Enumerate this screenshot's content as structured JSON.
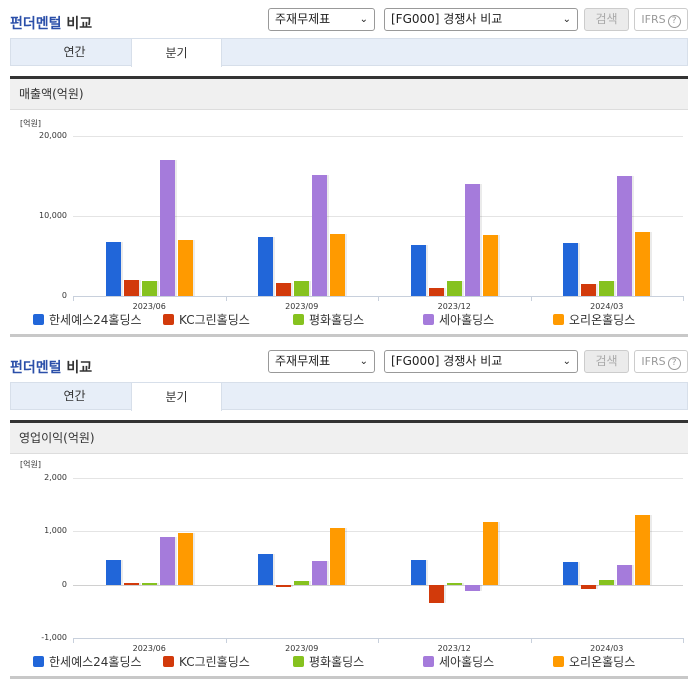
{
  "panels": [
    {
      "header": {
        "title_accent": "펀더멘털",
        "title_plain": " 비교",
        "select1": "주재무제표",
        "select2": "[FG000] 경쟁사 비교",
        "search_label": "검색",
        "ifrs_label": "IFRS",
        "help_glyph": "?"
      },
      "tabs": [
        {
          "label": "연간",
          "active": false
        },
        {
          "label": "분기",
          "active": true
        }
      ],
      "section_title": "매출액(억원)",
      "unit_label": "[억원]",
      "y_ticks": [
        "20,000",
        "10,000",
        "0"
      ]
    },
    {
      "header": {
        "title_accent": "펀더멘털",
        "title_plain": " 비교",
        "select1": "주재무제표",
        "select2": "[FG000] 경쟁사 비교",
        "search_label": "검색",
        "ifrs_label": "IFRS",
        "help_glyph": "?"
      },
      "tabs": [
        {
          "label": "연간",
          "active": false
        },
        {
          "label": "분기",
          "active": true
        }
      ],
      "section_title": "영업이익(억원)",
      "unit_label": "[억원]",
      "y_ticks": [
        "2,000",
        "1,000",
        "0",
        "-1,000"
      ]
    }
  ],
  "legend": [
    {
      "name": "한세예스24홀딩스",
      "color": "#2166d9"
    },
    {
      "name": "KC그린홀딩스",
      "color": "#d23a0b"
    },
    {
      "name": "평화홀딩스",
      "color": "#86c21f"
    },
    {
      "name": "세아홀딩스",
      "color": "#a57bdb"
    },
    {
      "name": "오리온홀딩스",
      "color": "#ff9a00"
    }
  ],
  "chart_data": [
    {
      "type": "bar",
      "title": "매출액(억원)",
      "xlabel": "",
      "ylabel": "[억원]",
      "ylim": [
        0,
        20000
      ],
      "grid": true,
      "legend_position": "bottom",
      "categories": [
        "2023/06",
        "2023/09",
        "2023/12",
        "2024/03"
      ],
      "series": [
        {
          "name": "한세예스24홀딩스",
          "color": "#2166d9",
          "values": [
            6750,
            7400,
            6400,
            6600
          ]
        },
        {
          "name": "KC그린홀딩스",
          "color": "#d23a0b",
          "values": [
            2000,
            1600,
            1000,
            1500
          ]
        },
        {
          "name": "평화홀딩스",
          "color": "#86c21f",
          "values": [
            1900,
            1900,
            1900,
            1900
          ]
        },
        {
          "name": "세아홀딩스",
          "color": "#a57bdb",
          "values": [
            17000,
            15100,
            14000,
            15000
          ]
        },
        {
          "name": "오리온홀딩스",
          "color": "#ff9a00",
          "values": [
            7000,
            7750,
            7600,
            8000
          ]
        }
      ]
    },
    {
      "type": "bar",
      "title": "영업이익(억원)",
      "xlabel": "",
      "ylabel": "[억원]",
      "ylim": [
        -1000,
        2000
      ],
      "grid": true,
      "legend_position": "bottom",
      "categories": [
        "2023/06",
        "2023/09",
        "2023/12",
        "2024/03"
      ],
      "series": [
        {
          "name": "한세예스24홀딩스",
          "color": "#2166d9",
          "values": [
            470,
            580,
            470,
            420
          ]
        },
        {
          "name": "KC그린홀딩스",
          "color": "#d23a0b",
          "values": [
            40,
            -30,
            -340,
            -90
          ]
        },
        {
          "name": "평화홀딩스",
          "color": "#86c21f",
          "values": [
            40,
            60,
            40,
            80
          ]
        },
        {
          "name": "세아홀딩스",
          "color": "#a57bdb",
          "values": [
            890,
            450,
            -110,
            360
          ]
        },
        {
          "name": "오리온홀딩스",
          "color": "#ff9a00",
          "values": [
            970,
            1070,
            1180,
            1310
          ]
        }
      ]
    }
  ]
}
